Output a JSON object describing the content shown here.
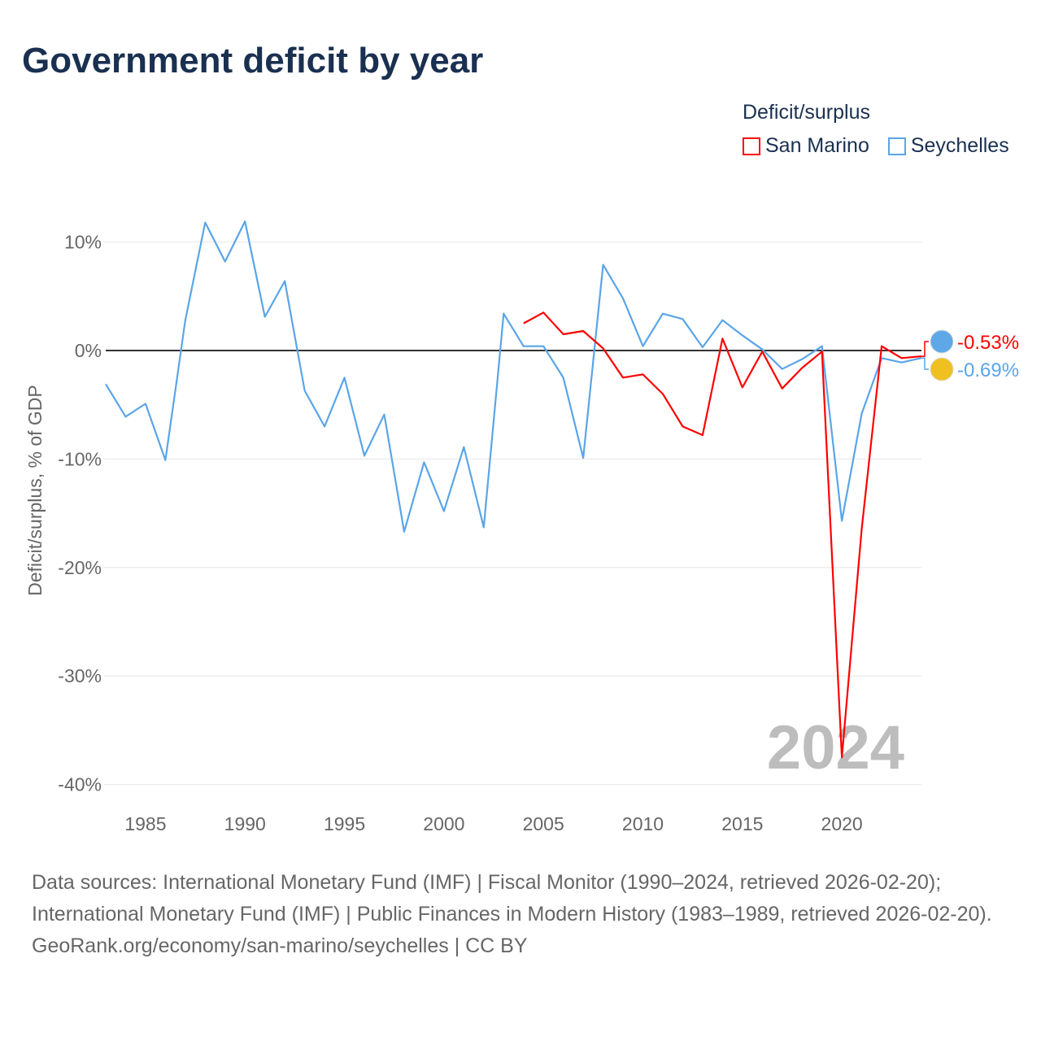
{
  "title": "Government deficit by year",
  "legend": {
    "title": "Deficit/surplus",
    "items": [
      {
        "name": "San Marino",
        "color": "#ff0000"
      },
      {
        "name": "Seychelles",
        "color": "#5aa5e8"
      }
    ]
  },
  "chart_data": {
    "type": "line",
    "title": "Government deficit by year",
    "xlabel": "",
    "ylabel": "Deficit/surplus, % of GDP",
    "xlim": [
      1983,
      2024
    ],
    "ylim": [
      -40,
      10
    ],
    "yticks": [
      10,
      0,
      -10,
      -20,
      -30,
      -40
    ],
    "ytick_labels": [
      "10%",
      "0%",
      "-10%",
      "-20%",
      "-30%",
      "-40%"
    ],
    "xticks": [
      1985,
      1990,
      1995,
      2000,
      2005,
      2010,
      2015,
      2020
    ],
    "xtick_labels": [
      "1985",
      "1990",
      "1995",
      "2000",
      "2005",
      "2010",
      "2015",
      "2020"
    ],
    "grid": true,
    "watermark_year": "2024",
    "series": [
      {
        "name": "Seychelles",
        "color": "#5aa5e8",
        "end_label": "-0.69%",
        "x": [
          1983,
          1984,
          1985,
          1986,
          1987,
          1988,
          1989,
          1990,
          1991,
          1992,
          1993,
          1994,
          1995,
          1996,
          1997,
          1998,
          1999,
          2000,
          2001,
          2002,
          2003,
          2004,
          2005,
          2006,
          2007,
          2008,
          2009,
          2010,
          2011,
          2012,
          2013,
          2014,
          2015,
          2016,
          2017,
          2018,
          2019,
          2020,
          2021,
          2022,
          2023,
          2024
        ],
        "values": [
          -3.1,
          -6.1,
          -4.9,
          -10.1,
          2.8,
          11.8,
          8.2,
          11.9,
          3.1,
          6.4,
          -3.7,
          -7.0,
          -2.5,
          -9.7,
          -5.9,
          -16.7,
          -10.3,
          -14.8,
          -8.9,
          -16.3,
          3.4,
          0.4,
          0.4,
          -2.5,
          -9.9,
          7.9,
          4.8,
          0.4,
          3.4,
          2.9,
          0.3,
          2.8,
          1.4,
          0.1,
          -1.7,
          -0.8,
          0.4,
          -15.7,
          -5.8,
          -0.7,
          -1.1,
          -0.69
        ]
      },
      {
        "name": "San Marino",
        "color": "#ff0000",
        "end_label": "-0.53%",
        "x": [
          2004,
          2005,
          2006,
          2007,
          2008,
          2009,
          2010,
          2011,
          2012,
          2013,
          2014,
          2015,
          2016,
          2017,
          2018,
          2019,
          2020,
          2021,
          2022,
          2023,
          2024
        ],
        "values": [
          2.5,
          3.5,
          1.5,
          1.8,
          0.2,
          -2.5,
          -2.2,
          -4.0,
          -7.0,
          -7.8,
          1.1,
          -3.4,
          -0.1,
          -3.5,
          -1.6,
          -0.1,
          -37.5,
          -16.4,
          0.4,
          -0.7,
          -0.53
        ]
      }
    ]
  },
  "sources": {
    "line1": "Data sources: International Monetary Fund (IMF) | Fiscal Monitor (1990–2024, retrieved 2026-02-20); International Monetary Fund (IMF) | Public Finances in Modern History (1983–1989, retrieved 2026-02-20).",
    "line2": "GeoRank.org/economy/san-marino/seychelles | CC BY"
  }
}
